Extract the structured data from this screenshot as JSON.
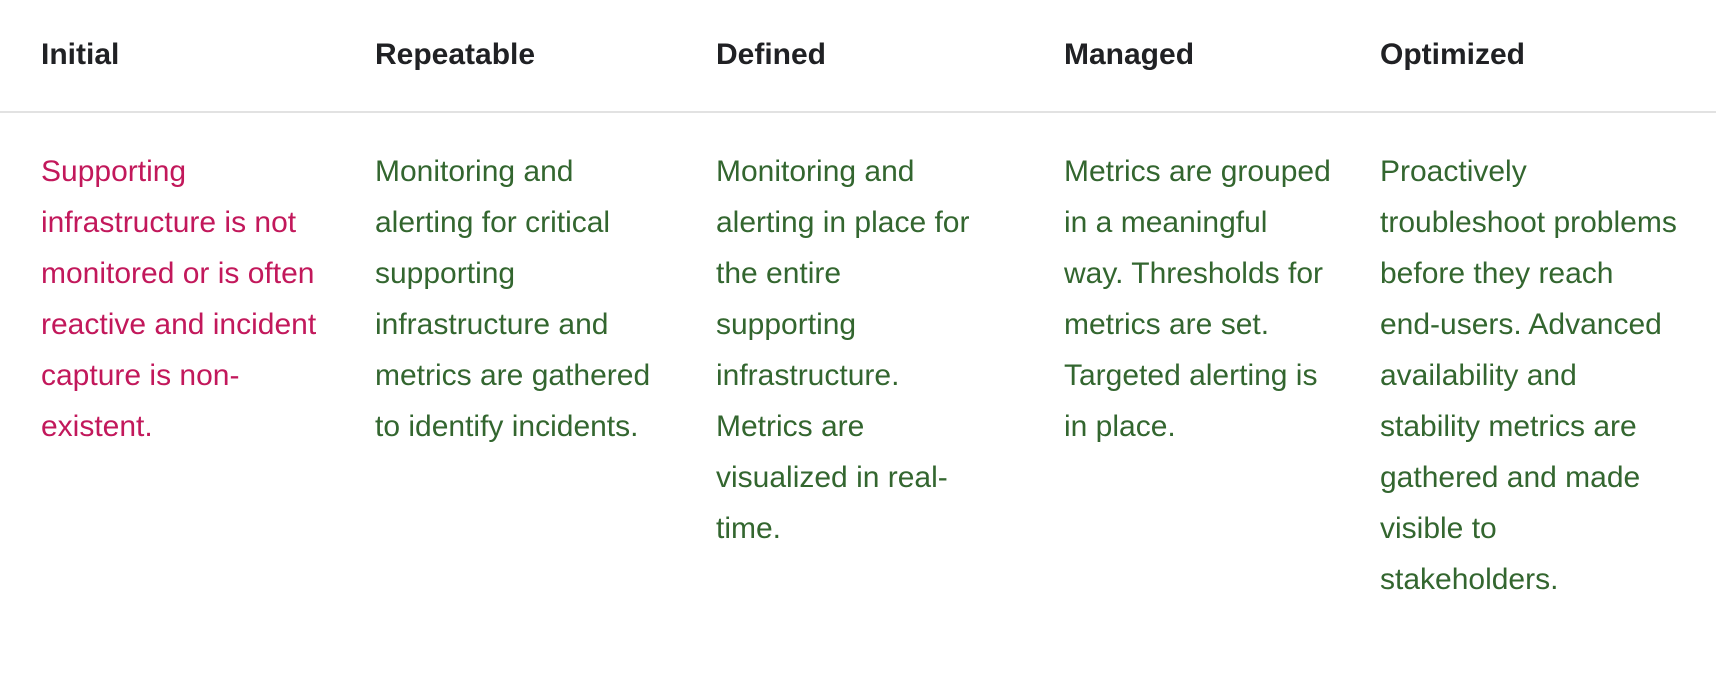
{
  "headers": [
    "Initial",
    "Repeatable",
    "Defined",
    "Managed",
    "Optimized"
  ],
  "cells": [
    "Supporting infrastructure is not monitored or is often reactive and incident capture is non-existent.",
    "Monitoring and alerting for critical supporting infrastructure and metrics are gathered to identify incidents.",
    "Monitoring and alerting in place for the entire supporting infrastructure. Metrics are visualized in real-time.",
    "Metrics are grouped in a meaningful way. Thresholds for metrics are set. Targeted alerting is in place.",
    "Proactively troubleshoot problems before they reach end-users. Advanced availability and stability metrics are gathered and made visible to stakeholders."
  ],
  "colors": {
    "header_text": "#202124",
    "initial_text": "#c2185b",
    "body_text": "#33662f",
    "divider": "#e2e2e2"
  }
}
